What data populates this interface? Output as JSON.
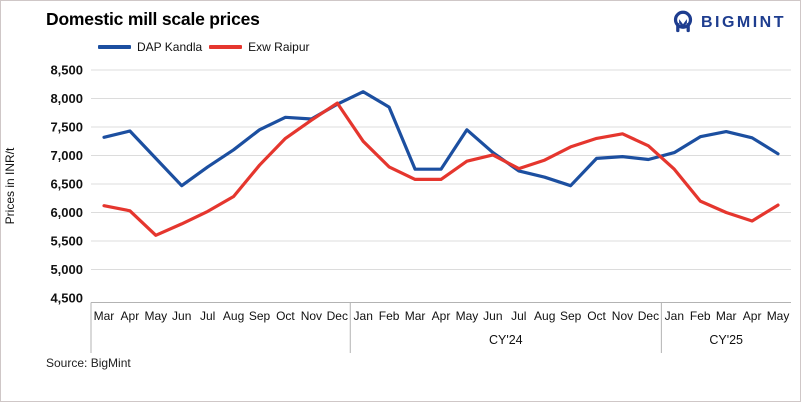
{
  "header": {
    "title": "Domestic mill scale prices",
    "logo_text": "BIGMINT",
    "logo_color": "#1E3D8F"
  },
  "source_note": "Source: BigMint",
  "colors": {
    "series_blue": "#1C4FA0",
    "series_red": "#E5362E",
    "gridline": "#dcdcdc",
    "axis": "#b3b3b3",
    "text": "#111111"
  },
  "chart_data": {
    "type": "line",
    "title": "Domestic mill scale prices",
    "xlabel": "",
    "ylabel": "Prices in INR/t",
    "ylim": [
      4500,
      8500
    ],
    "ytick_step": 500,
    "grid": true,
    "legend_position": "top",
    "x_groups": [
      {
        "label": "",
        "months": [
          "Mar",
          "Apr",
          "May",
          "Jun",
          "Jul",
          "Aug",
          "Sep",
          "Oct",
          "Nov",
          "Dec"
        ]
      },
      {
        "label": "CY'24",
        "months": [
          "Jan",
          "Feb",
          "Mar",
          "Apr",
          "May",
          "Jun",
          "Jul",
          "Aug",
          "Sep",
          "Oct",
          "Nov",
          "Dec"
        ]
      },
      {
        "label": "CY'25",
        "months": [
          "Jan",
          "Feb",
          "Mar",
          "Apr",
          "May"
        ]
      }
    ],
    "categories": [
      "Mar",
      "Apr",
      "May",
      "Jun",
      "Jul",
      "Aug",
      "Sep",
      "Oct",
      "Nov",
      "Dec",
      "Jan",
      "Feb",
      "Mar",
      "Apr",
      "May",
      "Jun",
      "Jul",
      "Aug",
      "Sep",
      "Oct",
      "Nov",
      "Dec",
      "Jan",
      "Feb",
      "Mar",
      "Apr",
      "May"
    ],
    "series": [
      {
        "name": "DAP Kandla",
        "color": "#1C4FA0",
        "values": [
          7320,
          7430,
          6950,
          6470,
          6800,
          7100,
          7450,
          7670,
          7640,
          7900,
          8120,
          7850,
          6760,
          6760,
          7450,
          7050,
          6730,
          6620,
          6470,
          6950,
          6980,
          6930,
          7050,
          7330,
          7420,
          7310,
          7030
        ]
      },
      {
        "name": "Exw Raipur",
        "color": "#E5362E",
        "values": [
          6120,
          6030,
          5600,
          5800,
          6020,
          6280,
          6830,
          7300,
          7620,
          7920,
          7250,
          6800,
          6580,
          6580,
          6900,
          7010,
          6770,
          6920,
          7150,
          7300,
          7380,
          7170,
          6760,
          6200,
          6000,
          5850,
          6130
        ]
      }
    ]
  }
}
